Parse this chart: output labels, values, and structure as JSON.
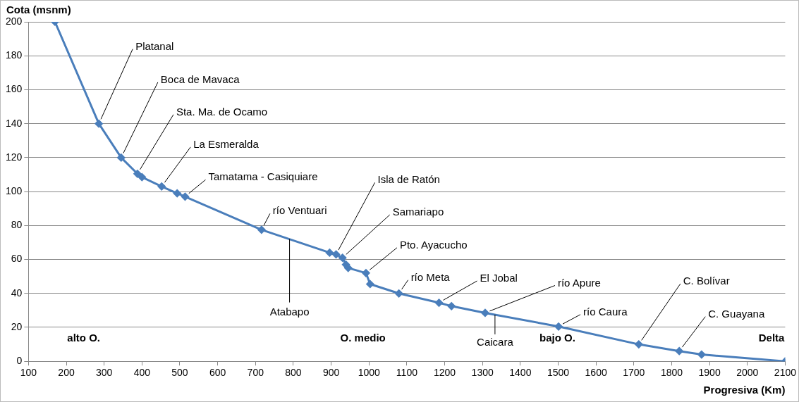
{
  "chart_data": {
    "type": "line",
    "xlabel": "Progresiva (Km)",
    "ylabel": "Cota (msnm)",
    "x": [
      170,
      286,
      345,
      388,
      400,
      452,
      493,
      514,
      716,
      896,
      913,
      930,
      939,
      945,
      992,
      1003,
      1079,
      1185,
      1218,
      1307,
      1501,
      1713,
      1820,
      1879,
      2100
    ],
    "series": [
      {
        "color": "#4a7ebb",
        "values": [
          200,
          140,
          120,
          110.5,
          108.5,
          103,
          99,
          97,
          77.5,
          64,
          63,
          61,
          57,
          55,
          52,
          45.5,
          40,
          34.5,
          32.5,
          28.5,
          20.5,
          10,
          6,
          4,
          0
        ]
      }
    ],
    "xlim": [
      100,
      2100
    ],
    "xticks": [
      100,
      200,
      300,
      400,
      500,
      600,
      700,
      800,
      900,
      1000,
      1100,
      1200,
      1300,
      1400,
      1500,
      1600,
      1700,
      1800,
      1900,
      2000,
      2100
    ],
    "ylim": [
      0,
      200
    ],
    "yticks": [
      0,
      20,
      40,
      60,
      80,
      100,
      120,
      140,
      160,
      180,
      200
    ],
    "grid": "y",
    "legend": false,
    "marker": "diamond",
    "line_style": "solid",
    "annotations": [
      {
        "text": "Platanal",
        "x": 286,
        "y": 140
      },
      {
        "text": "Boca de Mavaca",
        "x": 345,
        "y": 120
      },
      {
        "text": "Sta. Ma. de Ocamo",
        "x": 388,
        "y": 110.5
      },
      {
        "text": "La Esmeralda",
        "x": 452,
        "y": 103
      },
      {
        "text": "Tamatama - Casiquiare",
        "x": 514,
        "y": 97
      },
      {
        "text": "río Ventuari",
        "x": 716,
        "y": 77.5
      },
      {
        "text": "Atabapo",
        "x": 790,
        "y": 72
      },
      {
        "text": "Isla de Ratón",
        "x": 913,
        "y": 63
      },
      {
        "text": "Samariapo",
        "x": 930,
        "y": 61
      },
      {
        "text": "Pto. Ayacucho",
        "x": 992,
        "y": 52
      },
      {
        "text": "río Meta",
        "x": 1079,
        "y": 40
      },
      {
        "text": "El Jobal",
        "x": 1185,
        "y": 34.5
      },
      {
        "text": "río Apure",
        "x": 1307,
        "y": 28.5
      },
      {
        "text": "Caicara",
        "x": 1333,
        "y": 27.5
      },
      {
        "text": "río Caura",
        "x": 1501,
        "y": 20.5
      },
      {
        "text": "C. Bolívar",
        "x": 1713,
        "y": 10
      },
      {
        "text": "C. Guayana",
        "x": 1820,
        "y": 6
      },
      "alto O.",
      "O. medio",
      "bajo O.",
      "Delta"
    ]
  }
}
